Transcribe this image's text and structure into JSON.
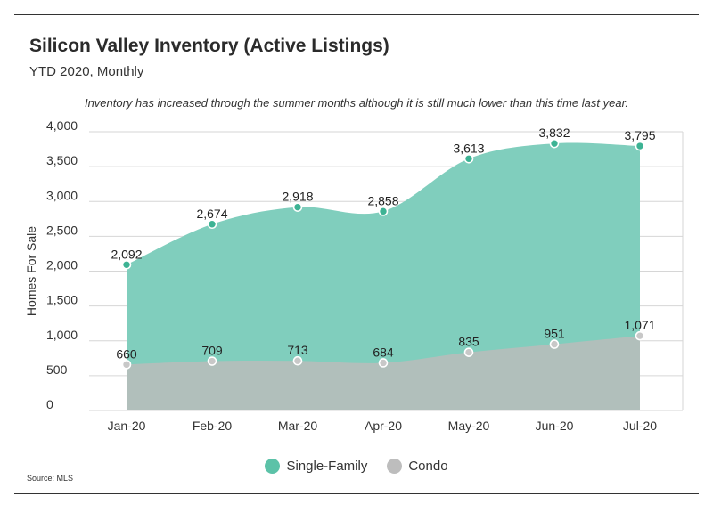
{
  "title": "Silicon Valley Inventory (Active Listings)",
  "subtitle": "YTD 2020, Monthly",
  "annotation": "Inventory has increased through the summer months although it is still much lower than this time last year.",
  "source": "Source: MLS",
  "colors": {
    "single_family": "#5cc2a8",
    "single_family_area": "#80cebd",
    "single_family_marker": "#3db394",
    "condo": "#bdbdbd",
    "condo_area": "#b1bfbb",
    "condo_marker": "#c8c8c8"
  },
  "chart_data": {
    "type": "area",
    "categories": [
      "Jan-20",
      "Feb-20",
      "Mar-20",
      "Apr-20",
      "May-20",
      "Jun-20",
      "Jul-20"
    ],
    "series": [
      {
        "name": "Single-Family",
        "values": [
          2092,
          2674,
          2918,
          2858,
          3613,
          3832,
          3795
        ],
        "labels": [
          "2,092",
          "2,674",
          "2,918",
          "2,858",
          "3,613",
          "3,832",
          "3,795"
        ]
      },
      {
        "name": "Condo",
        "values": [
          660,
          709,
          713,
          684,
          835,
          951,
          1071
        ],
        "labels": [
          "660",
          "709",
          "713",
          "684",
          "835",
          "951",
          "1,071"
        ]
      }
    ],
    "xlabel": "",
    "ylabel": "Homes For Sale",
    "ylim": [
      0,
      4000
    ],
    "yticks": [
      0,
      500,
      1000,
      1500,
      2000,
      2500,
      3000,
      3500,
      4000
    ],
    "ytick_labels": [
      "0",
      "500",
      "1,000",
      "1,500",
      "2,000",
      "2,500",
      "3,000",
      "3,500",
      "4,000"
    ],
    "grid": true,
    "legend_position": "bottom"
  }
}
